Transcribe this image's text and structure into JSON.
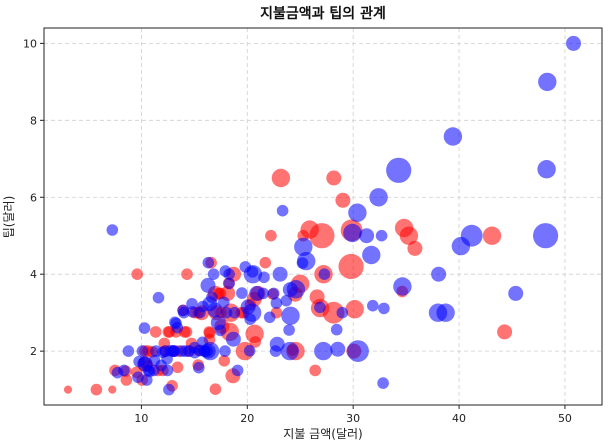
{
  "chart_data": {
    "type": "scatter",
    "title": "지불금액과 팁의 관계",
    "xlabel": "지불 금액(달러)",
    "ylabel": "팁(달러)",
    "xlim": [
      0.8,
      53.5
    ],
    "ylim": [
      0.6,
      10.4
    ],
    "xticks": [
      10,
      20,
      30,
      40,
      50
    ],
    "yticks": [
      2,
      4,
      6,
      8,
      10
    ],
    "grid": true,
    "marker_alpha": 0.55,
    "size_encodes": "table party size",
    "series": [
      {
        "color": "#ff0000",
        "points": [
          [
            3.07,
            1.0,
            1
          ],
          [
            5.75,
            1.0,
            2
          ],
          [
            7.25,
            1.0,
            1
          ],
          [
            7.51,
            1.5,
            2
          ],
          [
            8.58,
            1.25,
            2
          ],
          [
            8.52,
            1.48,
            2
          ],
          [
            9.55,
            1.45,
            2
          ],
          [
            9.6,
            4.0,
            2
          ],
          [
            10.07,
            1.25,
            2
          ],
          [
            10.33,
            2.0,
            2
          ],
          [
            10.34,
            1.66,
            3
          ],
          [
            10.59,
            1.61,
            2
          ],
          [
            10.63,
            2.0,
            2
          ],
          [
            11.02,
            1.98,
            2
          ],
          [
            11.35,
            2.5,
            2
          ],
          [
            11.59,
            1.5,
            2
          ],
          [
            12.03,
            1.5,
            2
          ],
          [
            12.16,
            2.2,
            2
          ],
          [
            12.26,
            2.0,
            2
          ],
          [
            12.54,
            2.5,
            2
          ],
          [
            12.66,
            2.5,
            2
          ],
          [
            12.9,
            1.1,
            2
          ],
          [
            13.0,
            2.0,
            2
          ],
          [
            13.27,
            2.5,
            2
          ],
          [
            13.42,
            1.58,
            2
          ],
          [
            13.51,
            2.0,
            2
          ],
          [
            13.94,
            3.06,
            2
          ],
          [
            14.07,
            2.5,
            2
          ],
          [
            14.26,
            2.5,
            2
          ],
          [
            14.31,
            4.0,
            2
          ],
          [
            14.48,
            2.0,
            2
          ],
          [
            14.73,
            2.2,
            2
          ],
          [
            15.06,
            3.0,
            2
          ],
          [
            15.36,
            1.64,
            2
          ],
          [
            15.38,
            3.0,
            2
          ],
          [
            15.48,
            2.02,
            2
          ],
          [
            15.69,
            3.0,
            3
          ],
          [
            16.4,
            2.5,
            2
          ],
          [
            16.43,
            2.3,
            2
          ],
          [
            16.45,
            2.47,
            2
          ],
          [
            16.58,
            4.3,
            2
          ],
          [
            16.97,
            3.5,
            3
          ],
          [
            16.99,
            1.01,
            2
          ],
          [
            17.07,
            3.0,
            3
          ],
          [
            17.31,
            3.5,
            2
          ],
          [
            17.47,
            3.5,
            2
          ],
          [
            17.51,
            3.0,
            2
          ],
          [
            17.59,
            2.64,
            3
          ],
          [
            17.82,
            1.75,
            2
          ],
          [
            18.15,
            3.5,
            3
          ],
          [
            18.24,
            3.76,
            2
          ],
          [
            18.35,
            2.5,
            4
          ],
          [
            18.43,
            3.0,
            4
          ],
          [
            18.64,
            1.36,
            3
          ],
          [
            18.71,
            4.0,
            3
          ],
          [
            19.44,
            3.0,
            2
          ],
          [
            19.65,
            3.0,
            2
          ],
          [
            19.77,
            2.0,
            4
          ],
          [
            20.29,
            3.21,
            2
          ],
          [
            20.65,
            3.35,
            3
          ],
          [
            20.69,
            2.45,
            4
          ],
          [
            20.76,
            2.24,
            2
          ],
          [
            21.01,
            3.5,
            3
          ],
          [
            21.7,
            4.3,
            2
          ],
          [
            22.23,
            5.0,
            2
          ],
          [
            22.42,
            3.48,
            2
          ],
          [
            22.76,
            3.0,
            2
          ],
          [
            23.17,
            6.5,
            4
          ],
          [
            24.27,
            2.03,
            2
          ],
          [
            24.52,
            3.48,
            3
          ],
          [
            24.55,
            2.0,
            4
          ],
          [
            25.0,
            3.75,
            4
          ],
          [
            25.28,
            5.0,
            2
          ],
          [
            25.89,
            5.16,
            4
          ],
          [
            26.41,
            1.5,
            2
          ],
          [
            26.59,
            3.41,
            3
          ],
          [
            26.88,
            3.12,
            4
          ],
          [
            27.05,
            5.0,
            6
          ],
          [
            27.2,
            4.0,
            4
          ],
          [
            28.15,
            3.0,
            5
          ],
          [
            28.17,
            6.5,
            3
          ],
          [
            29.03,
            5.92,
            3
          ],
          [
            29.85,
            5.14,
            5
          ],
          [
            30.06,
            2.0,
            3
          ],
          [
            30.14,
            3.09,
            4
          ],
          [
            29.8,
            4.2,
            6
          ],
          [
            34.63,
            3.55,
            2
          ],
          [
            34.81,
            5.2,
            4
          ],
          [
            35.26,
            5.0,
            4
          ],
          [
            35.83,
            4.67,
            3
          ],
          [
            43.11,
            5.0,
            4
          ],
          [
            44.3,
            2.5,
            3
          ]
        ]
      },
      {
        "color": "#0000ff",
        "points": [
          [
            7.25,
            5.15,
            2
          ],
          [
            7.74,
            1.44,
            2
          ],
          [
            8.35,
            1.5,
            2
          ],
          [
            8.77,
            2.0,
            2
          ],
          [
            9.68,
            1.32,
            2
          ],
          [
            9.78,
            1.73,
            2
          ],
          [
            10.09,
            2.0,
            2
          ],
          [
            10.27,
            1.71,
            2
          ],
          [
            10.29,
            2.6,
            2
          ],
          [
            10.33,
            1.67,
            3
          ],
          [
            10.51,
            1.25,
            2
          ],
          [
            10.65,
            1.5,
            2
          ],
          [
            10.77,
            1.47,
            2
          ],
          [
            11.17,
            1.5,
            2
          ],
          [
            11.24,
            1.76,
            2
          ],
          [
            11.38,
            2.0,
            2
          ],
          [
            11.61,
            3.39,
            2
          ],
          [
            11.87,
            1.63,
            2
          ],
          [
            12.02,
            1.97,
            2
          ],
          [
            12.26,
            2.0,
            2
          ],
          [
            12.43,
            1.8,
            2
          ],
          [
            12.46,
            1.5,
            2
          ],
          [
            12.6,
            1.0,
            2
          ],
          [
            12.74,
            2.01,
            2
          ],
          [
            13.0,
            2.0,
            2
          ],
          [
            13.03,
            2.0,
            2
          ],
          [
            13.13,
            2.0,
            2
          ],
          [
            13.16,
            2.75,
            2
          ],
          [
            13.28,
            2.72,
            2
          ],
          [
            13.39,
            2.61,
            2
          ],
          [
            13.81,
            2.0,
            2
          ],
          [
            13.94,
            3.06,
            2
          ],
          [
            14.0,
            3.0,
            2
          ],
          [
            14.15,
            2.0,
            2
          ],
          [
            14.52,
            2.0,
            2
          ],
          [
            14.78,
            3.23,
            2
          ],
          [
            14.83,
            3.02,
            2
          ],
          [
            15.01,
            2.09,
            2
          ],
          [
            15.04,
            1.96,
            2
          ],
          [
            15.42,
            1.57,
            2
          ],
          [
            15.48,
            2.02,
            2
          ],
          [
            15.53,
            3.0,
            2
          ],
          [
            15.77,
            2.23,
            2
          ],
          [
            15.81,
            3.16,
            2
          ],
          [
            15.95,
            2.0,
            2
          ],
          [
            16.0,
            2.0,
            2
          ],
          [
            16.21,
            2.0,
            2
          ],
          [
            16.29,
            3.71,
            3
          ],
          [
            16.31,
            2.0,
            3
          ],
          [
            16.32,
            4.3,
            2
          ],
          [
            16.47,
            3.23,
            3
          ],
          [
            16.49,
            2.0,
            4
          ],
          [
            16.66,
            3.4,
            2
          ],
          [
            16.82,
            4.0,
            2
          ],
          [
            16.93,
            3.07,
            3
          ],
          [
            17.26,
            2.74,
            3
          ],
          [
            17.46,
            2.54,
            2
          ],
          [
            17.78,
            3.27,
            2
          ],
          [
            17.89,
            2.0,
            2
          ],
          [
            17.92,
            4.08,
            2
          ],
          [
            18.04,
            3.0,
            2
          ],
          [
            18.28,
            4.0,
            2
          ],
          [
            18.29,
            3.76,
            2
          ],
          [
            18.69,
            2.31,
            3
          ],
          [
            18.78,
            3.0,
            2
          ],
          [
            19.08,
            1.5,
            2
          ],
          [
            19.49,
            3.51,
            2
          ],
          [
            19.81,
            4.19,
            2
          ],
          [
            20.08,
            3.15,
            3
          ],
          [
            20.23,
            2.01,
            2
          ],
          [
            20.27,
            2.83,
            2
          ],
          [
            20.45,
            3.0,
            4
          ],
          [
            20.49,
            4.06,
            2
          ],
          [
            20.53,
            4.0,
            4
          ],
          [
            20.9,
            3.5,
            3
          ],
          [
            21.5,
            3.5,
            2
          ],
          [
            21.58,
            3.92,
            2
          ],
          [
            22.12,
            2.88,
            2
          ],
          [
            22.49,
            3.5,
            2
          ],
          [
            22.67,
            2.0,
            2
          ],
          [
            22.75,
            3.25,
            2
          ],
          [
            22.82,
            2.18,
            3
          ],
          [
            23.1,
            4.0,
            3
          ],
          [
            23.33,
            5.65,
            2
          ],
          [
            23.68,
            3.31,
            2
          ],
          [
            23.95,
            2.55,
            2
          ],
          [
            24.01,
            2.0,
            4
          ],
          [
            24.06,
            3.6,
            3
          ],
          [
            24.08,
            2.92,
            4
          ],
          [
            24.59,
            3.61,
            4
          ],
          [
            25.21,
            4.29,
            2
          ],
          [
            25.29,
            4.71,
            4
          ],
          [
            25.56,
            4.34,
            4
          ],
          [
            26.86,
            3.14,
            2
          ],
          [
            27.18,
            2.0,
            4
          ],
          [
            27.28,
            4.0,
            2
          ],
          [
            28.44,
            2.56,
            2
          ],
          [
            28.55,
            2.05,
            3
          ],
          [
            28.97,
            3.0,
            2
          ],
          [
            29.93,
            5.07,
            4
          ],
          [
            30.4,
            5.6,
            4
          ],
          [
            30.46,
            2.0,
            5
          ],
          [
            31.27,
            5.0,
            3
          ],
          [
            31.71,
            4.5,
            4
          ],
          [
            31.85,
            3.18,
            2
          ],
          [
            32.4,
            6.0,
            4
          ],
          [
            32.68,
            5.0,
            2
          ],
          [
            32.83,
            1.17,
            2
          ],
          [
            32.9,
            3.11,
            2
          ],
          [
            34.3,
            6.7,
            6
          ],
          [
            34.65,
            3.68,
            4
          ],
          [
            38.01,
            3.0,
            4
          ],
          [
            38.07,
            4.0,
            3
          ],
          [
            38.73,
            3.0,
            4
          ],
          [
            39.42,
            7.58,
            4
          ],
          [
            40.17,
            4.73,
            4
          ],
          [
            41.19,
            5.0,
            5
          ],
          [
            45.35,
            3.5,
            3
          ],
          [
            48.17,
            5.0,
            6
          ],
          [
            48.27,
            6.73,
            4
          ],
          [
            48.33,
            9.0,
            4
          ],
          [
            50.81,
            10.0,
            3
          ]
        ]
      }
    ]
  }
}
